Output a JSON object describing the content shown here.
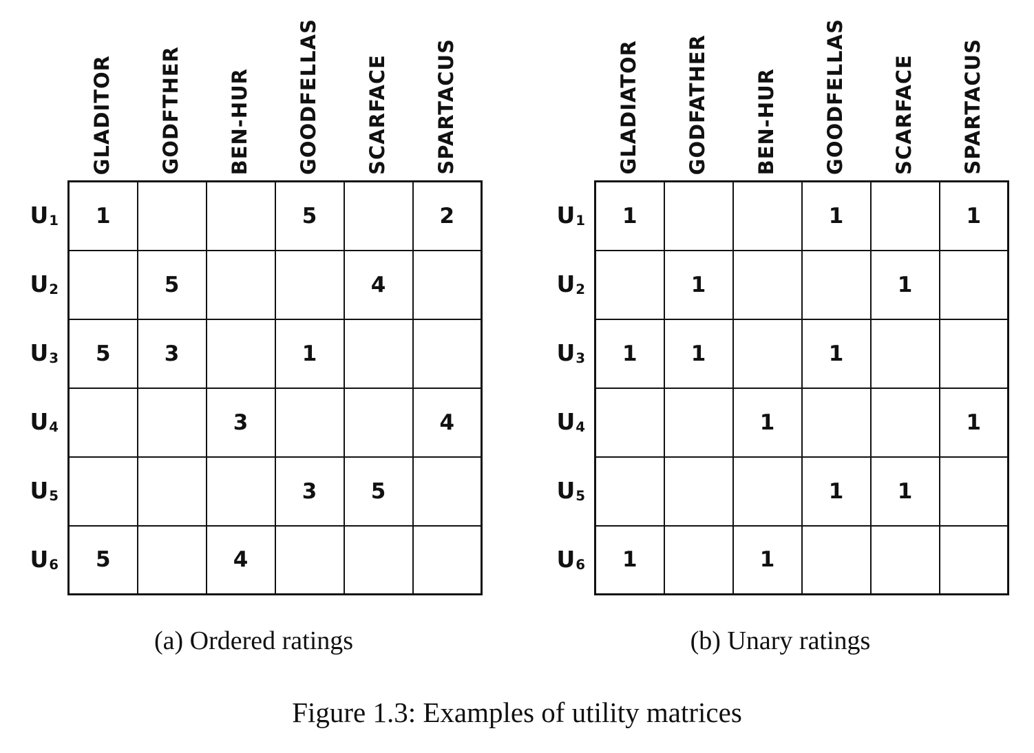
{
  "figure_caption": "Figure 1.3: Examples of utility matrices",
  "row_label_base": "U",
  "row_subscripts": [
    "1",
    "2",
    "3",
    "4",
    "5",
    "6"
  ],
  "colors": {
    "ink": "#111111",
    "background": "#ffffff"
  },
  "matrices": {
    "a": {
      "caption": "(a) Ordered ratings",
      "columns": [
        "GLADITOR",
        "GODFTHER",
        "BEN-HUR",
        "GOODFELLAS",
        "SCARFACE",
        "SPARTACUS"
      ],
      "rows": [
        [
          "1",
          "",
          "",
          "5",
          "",
          "2"
        ],
        [
          "",
          "5",
          "",
          "",
          "4",
          ""
        ],
        [
          "5",
          "3",
          "",
          "1",
          "",
          ""
        ],
        [
          "",
          "",
          "3",
          "",
          "",
          "4"
        ],
        [
          "",
          "",
          "",
          "3",
          "5",
          ""
        ],
        [
          "5",
          "",
          "4",
          "",
          "",
          ""
        ]
      ]
    },
    "b": {
      "caption": "(b) Unary ratings",
      "columns": [
        "GLADIATOR",
        "GODFATHER",
        "BEN-HUR",
        "GOODFELLAS",
        "SCARFACE",
        "SPARTACUS"
      ],
      "rows": [
        [
          "1",
          "",
          "",
          "1",
          "",
          "1"
        ],
        [
          "",
          "1",
          "",
          "",
          "1",
          ""
        ],
        [
          "1",
          "1",
          "",
          "1",
          "",
          ""
        ],
        [
          "",
          "",
          "1",
          "",
          "",
          "1"
        ],
        [
          "",
          "",
          "",
          "1",
          "1",
          ""
        ],
        [
          "1",
          "",
          "1",
          "",
          "",
          ""
        ]
      ]
    }
  }
}
